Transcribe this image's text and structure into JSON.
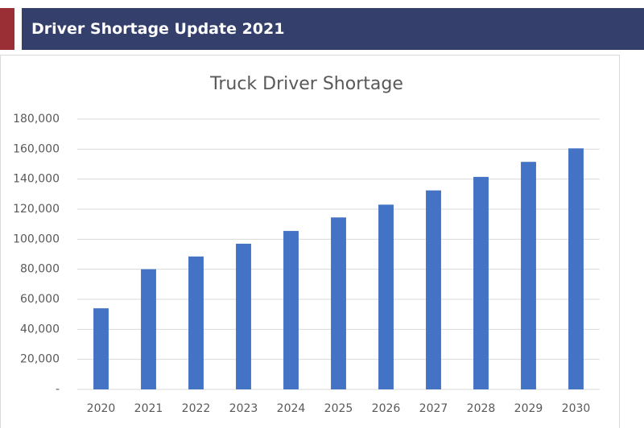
{
  "header": {
    "title": "Driver Shortage Update 2021"
  },
  "chart_data": {
    "type": "bar",
    "title": "Truck Driver Shortage",
    "categories": [
      "2020",
      "2021",
      "2022",
      "2023",
      "2024",
      "2025",
      "2026",
      "2027",
      "2028",
      "2029",
      "2030"
    ],
    "values": [
      54000,
      80000,
      88500,
      97000,
      105500,
      114500,
      123000,
      132500,
      141500,
      151500,
      160500
    ],
    "color": "#4472c4",
    "ylim": [
      0,
      180000
    ],
    "yticks": [
      {
        "value": 0,
        "label": "-"
      },
      {
        "value": 20000,
        "label": "20,000"
      },
      {
        "value": 40000,
        "label": "40,000"
      },
      {
        "value": 60000,
        "label": "60,000"
      },
      {
        "value": 80000,
        "label": "80,000"
      },
      {
        "value": 100000,
        "label": "100,000"
      },
      {
        "value": 120000,
        "label": "120,000"
      },
      {
        "value": 140000,
        "label": "140,000"
      },
      {
        "value": 160000,
        "label": "160,000"
      },
      {
        "value": 180000,
        "label": "180,000"
      }
    ],
    "grid": true
  }
}
